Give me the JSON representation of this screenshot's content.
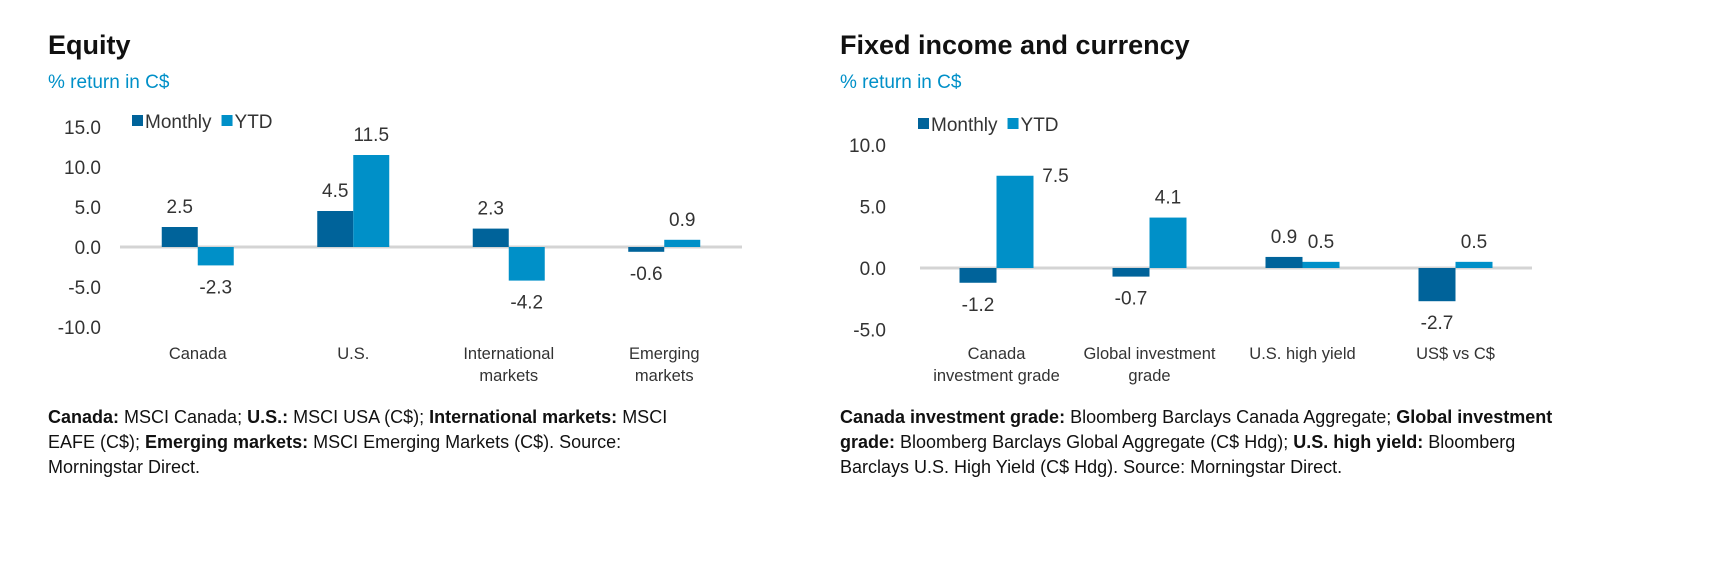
{
  "panels": [
    {
      "title": "Equity",
      "subtitle": "% return in C$",
      "note": [
        {
          "b": "Canada:",
          "t": " MSCI Canada; "
        },
        {
          "b": "U.S.:",
          "t": " MSCI USA (C$); "
        },
        {
          "b": "International markets:",
          "t": " MSCI EAFE (C$); "
        },
        {
          "b": "Emerging markets:",
          "t": " MSCI Emerging Markets (C$). Source: Morningstar Direct."
        }
      ]
    },
    {
      "title": "Fixed income and currency",
      "subtitle": "% return in C$",
      "note": [
        {
          "b": "Canada investment grade:",
          "t": " Bloomberg Barclays Canada Aggregate; "
        },
        {
          "b": "Global investment grade:",
          "t": " Bloomberg Barclays Global Aggregate (C$ Hdg); "
        },
        {
          "b": "U.S. high yield:",
          "t": " Bloomberg Barclays U.S. High Yield (C$ Hdg). Source: Morningstar Direct."
        }
      ]
    }
  ],
  "colors": {
    "monthly": "#00639a",
    "ytd": "#0090c8",
    "axis": "#d4d4d4"
  },
  "chart_data": [
    {
      "type": "bar",
      "title": "Equity",
      "ylabel": "% return in C$",
      "categories": [
        [
          "Canada"
        ],
        [
          "U.S."
        ],
        [
          "International",
          "markets"
        ],
        [
          "Emerging",
          "markets"
        ]
      ],
      "series": [
        {
          "name": "Monthly",
          "values": [
            2.5,
            4.5,
            2.3,
            -0.6
          ]
        },
        {
          "name": "YTD",
          "values": [
            -2.3,
            11.5,
            -4.2,
            0.9
          ]
        }
      ],
      "ylim": [
        -10,
        15
      ],
      "yticks": [
        "15.0",
        "10.0",
        "5.0",
        "0.0",
        "-5.0",
        "-10.0"
      ],
      "grid": false,
      "legend": "top-left"
    },
    {
      "type": "bar",
      "title": "Fixed income and currency",
      "ylabel": "% return in C$",
      "categories": [
        [
          "Canada",
          "investment grade"
        ],
        [
          "Global investment",
          "grade"
        ],
        [
          "U.S. high yield"
        ],
        [
          "US$ vs C$"
        ]
      ],
      "series": [
        {
          "name": "Monthly",
          "values": [
            -1.2,
            -0.7,
            0.9,
            -2.7
          ]
        },
        {
          "name": "YTD",
          "values": [
            7.5,
            4.1,
            0.5,
            0.5
          ]
        }
      ],
      "ylim": [
        -5,
        10
      ],
      "yticks": [
        "10.0",
        "5.0",
        "0.0",
        "-5.0"
      ],
      "grid": false,
      "legend": "top-left"
    }
  ]
}
